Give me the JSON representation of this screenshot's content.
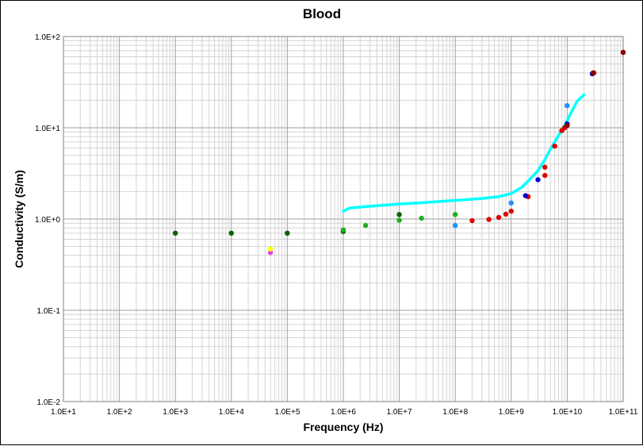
{
  "chart_data": {
    "type": "scatter",
    "title": "Blood",
    "xlabel": "Frequency (Hz)",
    "ylabel": "Conductivity (S/m)",
    "x_scale": "log",
    "y_scale": "log",
    "xlim": [
      10,
      100000000000
    ],
    "ylim": [
      0.01,
      100
    ],
    "grid": true,
    "legend": "none",
    "x_tick_labels": [
      "1.0E+1",
      "1.0E+2",
      "1.0E+3",
      "1.0E+4",
      "1.0E+5",
      "1.0E+6",
      "1.0E+7",
      "1.0E+8",
      "1.0E+9",
      "1.0E+10",
      "1.0E+11"
    ],
    "y_tick_labels": [
      "1.0E-2",
      "1.0E-1",
      "1.0E+0",
      "1.0E+1",
      "1.0E+2"
    ],
    "series": [
      {
        "name": "dark green points",
        "color": "#006400",
        "mode": "markers",
        "points": [
          [
            1000,
            0.7
          ],
          [
            10000,
            0.7
          ],
          [
            100000,
            0.7
          ],
          [
            1000000,
            0.73
          ],
          [
            10000000,
            1.12
          ]
        ]
      },
      {
        "name": "green points",
        "color": "#1fb01f",
        "mode": "markers",
        "points": [
          [
            1000000,
            0.76
          ],
          [
            2500000,
            0.85
          ],
          [
            10000000,
            0.97
          ],
          [
            25000000,
            1.02
          ],
          [
            100000000,
            1.12
          ]
        ]
      },
      {
        "name": "magenta point",
        "color": "#e040e0",
        "mode": "markers",
        "points": [
          [
            50000,
            0.43
          ]
        ]
      },
      {
        "name": "yellow point",
        "color": "#ffff00",
        "mode": "markers",
        "points": [
          [
            50000,
            0.47
          ]
        ]
      },
      {
        "name": "light blue points",
        "color": "#1e90ff",
        "mode": "markers",
        "points": [
          [
            100000000,
            0.85
          ],
          [
            1000000000,
            1.5
          ],
          [
            10000000000,
            17.5
          ]
        ]
      },
      {
        "name": "red points",
        "color": "#dd0000",
        "mode": "markers",
        "points": [
          [
            200000000,
            0.96
          ],
          [
            400000000,
            0.99
          ],
          [
            600000000,
            1.04
          ],
          [
            800000000,
            1.13
          ],
          [
            1000000000,
            1.22
          ],
          [
            2000000000,
            1.76
          ],
          [
            4000000000,
            3.0
          ],
          [
            4000000000,
            3.7
          ],
          [
            6000000000,
            6.3
          ],
          [
            8000000000,
            9.3
          ],
          [
            9000000000,
            10.0
          ],
          [
            30000000000,
            40.0
          ],
          [
            100000000000,
            67.0
          ]
        ]
      },
      {
        "name": "blue points",
        "color": "#0000cc",
        "mode": "markers",
        "points": [
          [
            1800000000,
            1.8
          ],
          [
            3000000000,
            2.7
          ],
          [
            10000000000,
            11.0
          ],
          [
            28000000000,
            39.0
          ]
        ]
      },
      {
        "name": "dark red points",
        "color": "#8b0000",
        "mode": "markers",
        "points": [
          [
            10000000000,
            10.6
          ],
          [
            29000000000,
            40.0
          ],
          [
            100000000000,
            67.0
          ]
        ]
      },
      {
        "name": "model curve",
        "color": "#00ffff",
        "mode": "line",
        "points": [
          [
            1000000,
            1.22
          ],
          [
            1300000,
            1.32
          ],
          [
            3000000,
            1.38
          ],
          [
            10000000,
            1.46
          ],
          [
            30000000,
            1.52
          ],
          [
            100000000,
            1.6
          ],
          [
            300000000,
            1.68
          ],
          [
            600000000,
            1.76
          ],
          [
            1000000000,
            1.9
          ],
          [
            1500000000,
            2.2
          ],
          [
            2000000000,
            2.6
          ],
          [
            3000000000,
            3.4
          ],
          [
            4000000000,
            4.5
          ],
          [
            5000000000,
            5.8
          ],
          [
            6000000000,
            7.0
          ],
          [
            8000000000,
            9.5
          ],
          [
            10000000000,
            12.0
          ],
          [
            12000000000,
            15.0
          ],
          [
            15000000000,
            19.5
          ],
          [
            20000000000,
            23.0
          ]
        ]
      }
    ]
  }
}
